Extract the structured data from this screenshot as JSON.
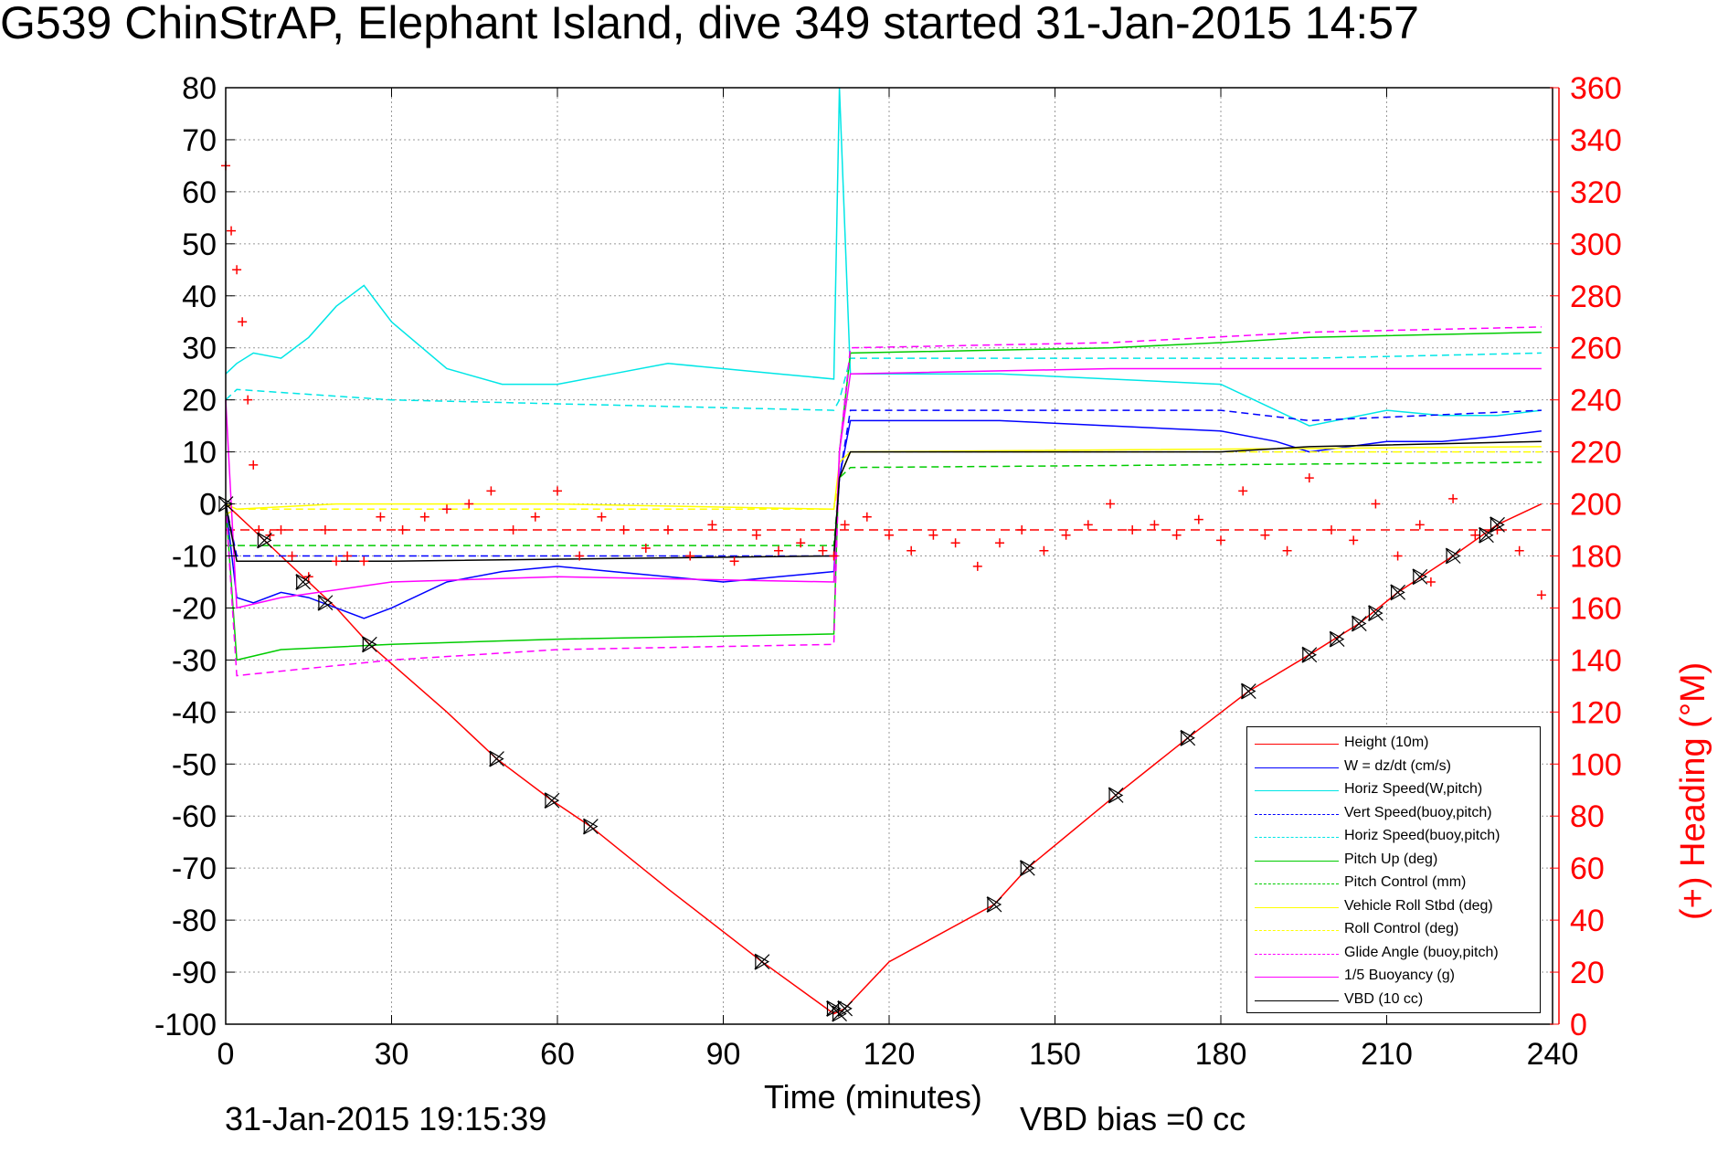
{
  "title": "G539 ChinStrAP, Elephant Island, dive 349 started 31-Jan-2015 14:57",
  "footer": {
    "timestamp": "31-Jan-2015 19:15:39",
    "vbd_bias": "VBD bias =0 cc"
  },
  "chart_data": {
    "type": "line",
    "xlabel": "Time (minutes)",
    "ylabel": "",
    "ylabel_right": "(+) Heading (°M)",
    "xlim": [
      0,
      240
    ],
    "ylim": [
      -100,
      80
    ],
    "ylim_right": [
      0,
      360
    ],
    "xticks": [
      0,
      30,
      60,
      90,
      120,
      150,
      180,
      210,
      240
    ],
    "yticks": [
      80,
      70,
      60,
      50,
      40,
      30,
      20,
      10,
      0,
      -10,
      -20,
      -30,
      -40,
      -50,
      -60,
      -70,
      -80,
      -90,
      -100
    ],
    "yticks_right": [
      360,
      340,
      320,
      300,
      280,
      260,
      240,
      220,
      200,
      180,
      160,
      140,
      120,
      100,
      80,
      60,
      40,
      20,
      0
    ],
    "grid": true,
    "legend_position": "bottom-right",
    "series": [
      {
        "name": "Height (10m)",
        "color": "#ff0000",
        "style": "solid",
        "x": [
          0,
          5,
          10,
          20,
          26,
          40,
          49,
          59,
          66,
          80,
          97,
          110,
          112,
          120,
          139,
          145,
          161,
          174,
          185,
          196,
          205,
          212,
          222,
          230,
          234,
          238
        ],
        "y": [
          0,
          -5,
          -10,
          -20,
          -27,
          -40,
          -49,
          -57,
          -62,
          -74,
          -88,
          -98,
          -97,
          -88,
          -77,
          -70,
          -56,
          -45,
          -36,
          -29,
          -23,
          -17,
          -10,
          -4,
          -2,
          0
        ]
      },
      {
        "name": "W = dz/dt (cm/s)",
        "color": "#0000ff",
        "style": "solid",
        "x": [
          0,
          2,
          5,
          10,
          15,
          20,
          25,
          30,
          40,
          50,
          60,
          70,
          80,
          90,
          100,
          110,
          111,
          113,
          120,
          140,
          160,
          180,
          190,
          196,
          210,
          220,
          230,
          238
        ],
        "y": [
          0,
          -18,
          -19,
          -17,
          -18,
          -20,
          -22,
          -20,
          -15,
          -13,
          -12,
          -13,
          -14,
          -15,
          -14,
          -13,
          5,
          16,
          16,
          16,
          15,
          14,
          12,
          10,
          12,
          12,
          13,
          14
        ]
      },
      {
        "name": "Horiz Speed(W,pitch)",
        "color": "#00e6e6",
        "style": "solid",
        "x": [
          0,
          2,
          5,
          10,
          15,
          20,
          25,
          30,
          40,
          50,
          60,
          70,
          80,
          90,
          100,
          110,
          111,
          113,
          120,
          140,
          160,
          180,
          190,
          196,
          210,
          220,
          230,
          238
        ],
        "y": [
          25,
          27,
          29,
          28,
          32,
          38,
          42,
          35,
          26,
          23,
          23,
          25,
          27,
          26,
          25,
          24,
          80,
          25,
          25,
          25,
          24,
          23,
          18,
          15,
          18,
          17,
          17,
          18
        ]
      },
      {
        "name": "Vert Speed(buoy,pitch)",
        "color": "#0000ff",
        "style": "dashed",
        "x": [
          0,
          2,
          30,
          110,
          111,
          113,
          180,
          196,
          238
        ],
        "y": [
          0,
          -10,
          -10,
          -10,
          5,
          18,
          18,
          16,
          18
        ]
      },
      {
        "name": "Horiz Speed(buoy,pitch)",
        "color": "#00e6e6",
        "style": "dashed",
        "x": [
          0,
          2,
          30,
          110,
          111,
          113,
          180,
          196,
          238
        ],
        "y": [
          20,
          22,
          20,
          18,
          20,
          28,
          28,
          28,
          29
        ]
      },
      {
        "name": "Pitch Up (deg)",
        "color": "#00cc00",
        "style": "solid",
        "x": [
          0,
          2,
          10,
          30,
          60,
          110,
          111,
          113,
          160,
          180,
          196,
          238
        ],
        "y": [
          0,
          -30,
          -28,
          -27,
          -26,
          -25,
          10,
          29,
          30,
          31,
          32,
          33
        ]
      },
      {
        "name": "Pitch Control (mm)",
        "color": "#00cc00",
        "style": "dashed",
        "x": [
          0,
          2,
          110,
          111,
          113,
          238
        ],
        "y": [
          -8,
          -8,
          -8,
          5,
          7,
          8
        ]
      },
      {
        "name": "Vehicle Roll Stbd (deg)",
        "color": "#ffff00",
        "style": "solid",
        "x": [
          0,
          2,
          20,
          60,
          110,
          111,
          113,
          238
        ],
        "y": [
          0,
          -1,
          0,
          0,
          -1,
          8,
          10,
          11
        ]
      },
      {
        "name": "Roll Control (deg)",
        "color": "#ffff00",
        "style": "dashed",
        "x": [
          0,
          2,
          110,
          111,
          113,
          238
        ],
        "y": [
          -2,
          -1,
          -1,
          5,
          10,
          10
        ]
      },
      {
        "name": "Glide Angle (buoy,pitch)",
        "color": "#ff00ff",
        "style": "dashed",
        "x": [
          0,
          2,
          30,
          60,
          110,
          111,
          113,
          160,
          196,
          238
        ],
        "y": [
          0,
          -33,
          -30,
          -28,
          -27,
          10,
          30,
          31,
          33,
          34
        ]
      },
      {
        "name": "1/5 Buoyancy (g)",
        "color": "#ff00ff",
        "style": "solid",
        "x": [
          0,
          2,
          10,
          30,
          60,
          110,
          111,
          113,
          160,
          196,
          238
        ],
        "y": [
          20,
          -20,
          -18,
          -15,
          -14,
          -15,
          10,
          25,
          26,
          26,
          26
        ]
      },
      {
        "name": "VBD (10 cc)",
        "color": "#000000",
        "style": "solid",
        "x": [
          0,
          2,
          30,
          110,
          111,
          113,
          180,
          196,
          238
        ],
        "y": [
          0,
          -11,
          -11,
          -10,
          5,
          10,
          10,
          11,
          12
        ]
      }
    ],
    "heading_series": {
      "color": "#ff0000",
      "marker": "+",
      "axis": "right",
      "x": [
        0,
        1,
        2,
        3,
        4,
        5,
        6,
        8,
        10,
        12,
        15,
        18,
        20,
        22,
        25,
        28,
        32,
        36,
        40,
        44,
        48,
        52,
        56,
        60,
        64,
        68,
        72,
        76,
        80,
        84,
        88,
        92,
        96,
        100,
        104,
        108,
        110,
        112,
        116,
        120,
        124,
        128,
        132,
        136,
        140,
        144,
        148,
        152,
        156,
        160,
        164,
        168,
        172,
        176,
        180,
        184,
        188,
        192,
        196,
        200,
        204,
        208,
        212,
        216,
        218,
        222,
        226,
        230,
        234,
        238
      ],
      "y": [
        330,
        305,
        290,
        270,
        240,
        215,
        190,
        188,
        190,
        180,
        172,
        190,
        178,
        180,
        178,
        195,
        190,
        195,
        198,
        200,
        205,
        190,
        195,
        205,
        180,
        195,
        190,
        183,
        190,
        180,
        192,
        178,
        188,
        182,
        185,
        182,
        180,
        192,
        195,
        188,
        182,
        188,
        185,
        176,
        185,
        190,
        182,
        188,
        192,
        200,
        190,
        192,
        188,
        194,
        186,
        205,
        188,
        182,
        210,
        190,
        186,
        200,
        180,
        192,
        170,
        202,
        188,
        190,
        182,
        165
      ]
    },
    "reference_line": {
      "y": -5,
      "color": "#ff0000",
      "style": "dashed"
    },
    "markers": {
      "symbol": "triangle-x",
      "color": "#000000",
      "x": [
        0,
        7,
        14,
        18,
        26,
        49,
        59,
        66,
        97,
        110,
        111,
        112,
        139,
        145,
        161,
        174,
        185,
        196,
        201,
        205,
        208,
        212,
        216,
        222,
        228,
        230
      ],
      "y": [
        0,
        -7,
        -15,
        -19,
        -27,
        -49,
        -57,
        -62,
        -88,
        -97,
        -98,
        -97,
        -77,
        -70,
        -56,
        -45,
        -36,
        -29,
        -26,
        -23,
        -21,
        -17,
        -14,
        -10,
        -6,
        -4
      ]
    }
  }
}
